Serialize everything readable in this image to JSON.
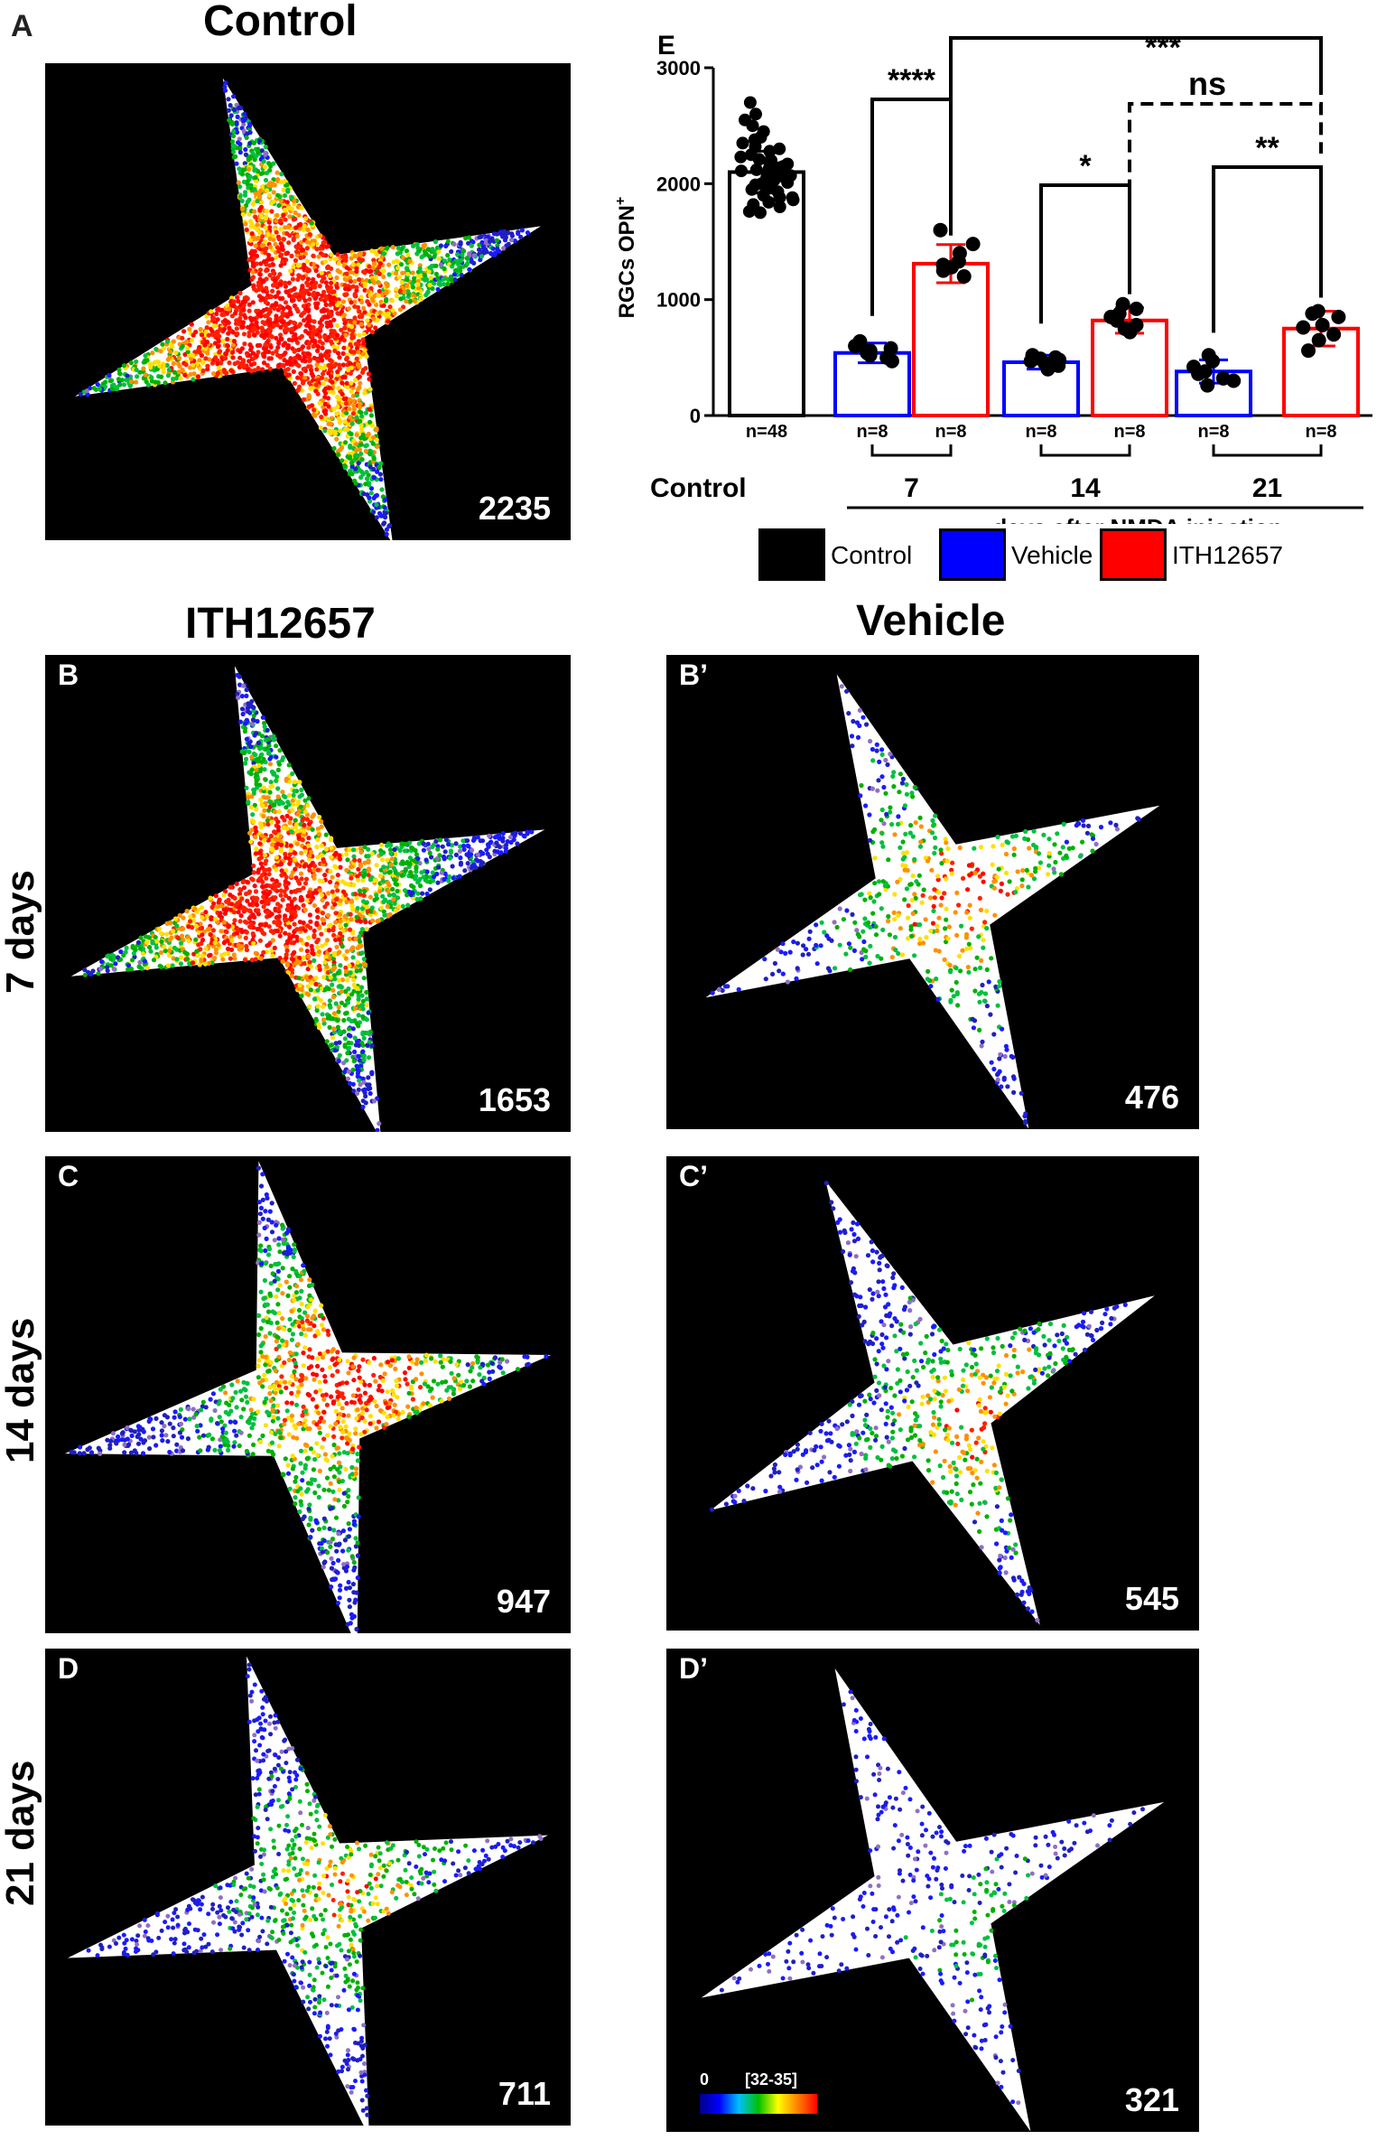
{
  "panels": {
    "A": {
      "label": "A",
      "count": "2235"
    },
    "B": {
      "label": "B",
      "count": "1653"
    },
    "Bp": {
      "label": "B’",
      "count": "476"
    },
    "C": {
      "label": "C",
      "count": "947"
    },
    "Cp": {
      "label": "C’",
      "count": "545"
    },
    "D": {
      "label": "D",
      "count": "711"
    },
    "Dp": {
      "label": "D’",
      "count": "321"
    }
  },
  "titles": {
    "control": "Control",
    "ith": "ITH12657",
    "vehicle": "Vehicle",
    "row7": "7 days",
    "row14": "14 days",
    "row21": "21 days"
  },
  "colorbar": {
    "min": "0",
    "max": "[32-35]"
  },
  "legend": [
    {
      "name": "Control",
      "color": "#000000"
    },
    {
      "name": "Vehicle",
      "color": "#0000ff"
    },
    {
      "name": "ITH12657",
      "color": "#ff0000"
    }
  ],
  "chart_data": {
    "type": "bar",
    "panel_label": "E",
    "ylabel": "RGCs OPN",
    "ylabel_sup": "+",
    "ylim": [
      0,
      3000
    ],
    "yticks": [
      0,
      1000,
      2000,
      3000
    ],
    "xlabel": "days after NMDA injection",
    "groups": [
      "Control",
      "7",
      "14",
      "21"
    ],
    "bars": [
      {
        "group": "Control",
        "series": "Control",
        "value": 2100,
        "sd": 180,
        "n": "n=48",
        "color": "#000000"
      },
      {
        "group": "7",
        "series": "Vehicle",
        "value": 540,
        "sd": 85,
        "n": "n=8",
        "color": "#0000ff"
      },
      {
        "group": "7",
        "series": "ITH12657",
        "value": 1310,
        "sd": 165,
        "n": "n=8",
        "color": "#ff0000"
      },
      {
        "group": "14",
        "series": "Vehicle",
        "value": 460,
        "sd": 60,
        "n": "n=8",
        "color": "#0000ff"
      },
      {
        "group": "14",
        "series": "ITH12657",
        "value": 820,
        "sd": 110,
        "n": "n=8",
        "color": "#ff0000"
      },
      {
        "group": "21",
        "series": "Vehicle",
        "value": 380,
        "sd": 100,
        "n": "n=8",
        "color": "#0000ff"
      },
      {
        "group": "21",
        "series": "ITH12657",
        "value": 750,
        "sd": 150,
        "n": "n=8",
        "color": "#ff0000"
      }
    ],
    "points": [
      [
        2700,
        2600,
        2550,
        2500,
        2450,
        2400,
        2380,
        2350,
        2320,
        2300,
        2280,
        2250,
        2230,
        2210,
        2200,
        2180,
        2170,
        2150,
        2140,
        2130,
        2120,
        2110,
        2100,
        2090,
        2080,
        2070,
        2060,
        2050,
        2040,
        2030,
        2020,
        2010,
        2000,
        1990,
        1980,
        1970,
        1950,
        1930,
        1900,
        1880,
        1860,
        1840,
        1820,
        1800,
        1780,
        1760,
        1750,
        1880
      ],
      [
        640,
        600,
        580,
        560,
        540,
        520,
        500,
        470
      ],
      [
        1600,
        1480,
        1400,
        1330,
        1300,
        1280,
        1250,
        1200
      ],
      [
        520,
        500,
        490,
        480,
        470,
        450,
        430,
        400
      ],
      [
        960,
        920,
        880,
        850,
        820,
        780,
        750,
        720
      ],
      [
        520,
        470,
        420,
        380,
        360,
        320,
        300,
        260
      ],
      [
        900,
        880,
        850,
        780,
        760,
        700,
        650,
        560
      ]
    ],
    "comparisons": [
      {
        "from": 1,
        "to": 2,
        "label": "****",
        "dashed": false
      },
      {
        "from": 3,
        "to": 4,
        "label": "*",
        "dashed": false
      },
      {
        "from": 5,
        "to": 6,
        "label": "**",
        "dashed": false
      },
      {
        "from": 4,
        "to": 6,
        "label": "ns",
        "dashed": true
      },
      {
        "from": 2,
        "to": 6,
        "label": "***",
        "dashed": false
      }
    ]
  }
}
